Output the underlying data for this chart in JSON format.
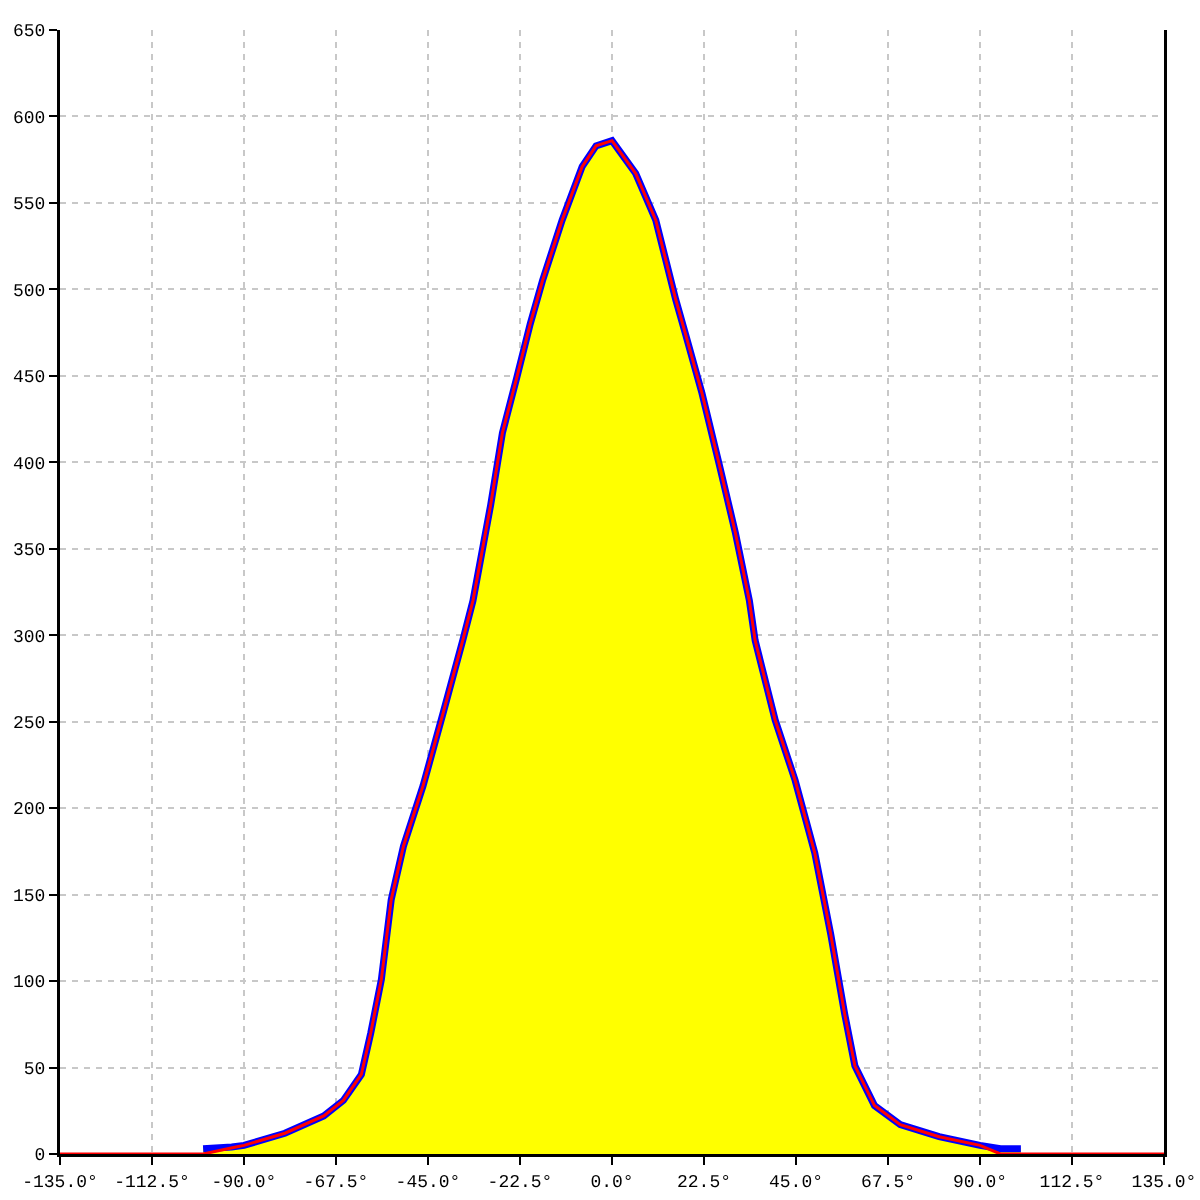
{
  "chart_data": {
    "type": "area",
    "xlim": [
      -135,
      135
    ],
    "xticks": [
      {
        "value": -135,
        "label": "-135.0°"
      },
      {
        "value": -112.5,
        "label": "-112.5°"
      },
      {
        "value": -90,
        "label": "-90.0°"
      },
      {
        "value": -67.5,
        "label": "-67.5°"
      },
      {
        "value": -45,
        "label": "-45.0°"
      },
      {
        "value": -22.5,
        "label": "-22.5°"
      },
      {
        "value": 0,
        "label": "0.0°"
      },
      {
        "value": 22.5,
        "label": "22.5°"
      },
      {
        "value": 45,
        "label": "45.0°"
      },
      {
        "value": 67.5,
        "label": "67.5°"
      },
      {
        "value": 90,
        "label": "90.0°"
      },
      {
        "value": 112.5,
        "label": "112.5°"
      },
      {
        "value": 135,
        "label": "135.0°"
      }
    ],
    "ylim": [
      0,
      650
    ],
    "yticks": [
      0,
      50,
      100,
      150,
      200,
      250,
      300,
      350,
      400,
      450,
      500,
      550,
      600,
      650
    ],
    "grid": true,
    "series": [
      {
        "color": "#ffff00",
        "x": [
          -100,
          -93,
          -90,
          -80,
          -70.5,
          -65.7,
          -61.3,
          -59,
          -56.4,
          -54,
          -51,
          -46.2,
          -41.3,
          -36.5,
          -34,
          -29.7,
          -26.8,
          -23.4,
          -20,
          -17,
          -12.2,
          -7.3,
          -3.9,
          0,
          5.8,
          10.7,
          15.6,
          18,
          22,
          26.3,
          30.2,
          33.6,
          35,
          39.9,
          44.8,
          49.6,
          53.5,
          56.9,
          59.4,
          64.2,
          70.5,
          80,
          90,
          95,
          100
        ],
        "values": [
          3,
          4,
          5,
          12,
          22,
          31,
          46,
          70,
          101,
          147,
          178,
          213,
          255,
          297,
          320,
          375,
          417,
          448,
          480,
          505,
          540,
          571,
          583,
          586,
          567,
          540,
          494,
          474,
          440,
          398,
          359,
          320,
          297,
          251,
          216,
          174,
          127,
          81,
          51,
          28,
          17,
          10,
          5,
          3,
          3
        ]
      },
      {
        "type": "line",
        "color": "#0000ff",
        "x": [
          -100,
          -93,
          -90,
          -80,
          -70.5,
          -65.7,
          -61.3,
          -59,
          -56.4,
          -54,
          -51,
          -46.2,
          -41.3,
          -36.5,
          -34,
          -29.7,
          -26.8,
          -23.4,
          -20,
          -17,
          -12.2,
          -7.3,
          -3.9,
          0,
          5.8,
          10.7,
          15.6,
          18,
          22,
          26.3,
          30.2,
          33.6,
          35,
          39.9,
          44.8,
          49.6,
          53.5,
          56.9,
          59.4,
          64.2,
          70.5,
          80,
          90,
          95,
          100
        ],
        "values": [
          3,
          4,
          5,
          12,
          22,
          31,
          46,
          70,
          101,
          147,
          178,
          213,
          255,
          297,
          320,
          375,
          417,
          448,
          480,
          505,
          540,
          571,
          583,
          586,
          567,
          540,
          494,
          474,
          440,
          398,
          359,
          320,
          297,
          251,
          216,
          174,
          127,
          81,
          51,
          28,
          17,
          10,
          5,
          3,
          3
        ]
      },
      {
        "type": "line",
        "color": "#ff0000",
        "x": [
          -135,
          -100,
          -92,
          -90,
          -80,
          -70.5,
          -65.7,
          -61.3,
          -59,
          -56.4,
          -54,
          -51,
          -46.2,
          -41.3,
          -36.5,
          -34,
          -29.7,
          -26.8,
          -23.4,
          -20,
          -17,
          -12.2,
          -7.3,
          -3.9,
          0,
          5.8,
          10.7,
          15.6,
          18,
          22,
          26.3,
          30.2,
          33.6,
          35,
          39.9,
          44.8,
          49.6,
          53.5,
          56.9,
          59.4,
          64.2,
          70.5,
          80,
          90,
          95,
          135
        ],
        "values": [
          0,
          0,
          4,
          5,
          12,
          22,
          31,
          46,
          70,
          101,
          147,
          178,
          213,
          255,
          297,
          320,
          375,
          417,
          448,
          480,
          505,
          540,
          571,
          583,
          586,
          567,
          540,
          494,
          474,
          440,
          398,
          359,
          320,
          297,
          251,
          216,
          174,
          127,
          81,
          51,
          28,
          17,
          10,
          5,
          0,
          0
        ]
      }
    ]
  }
}
